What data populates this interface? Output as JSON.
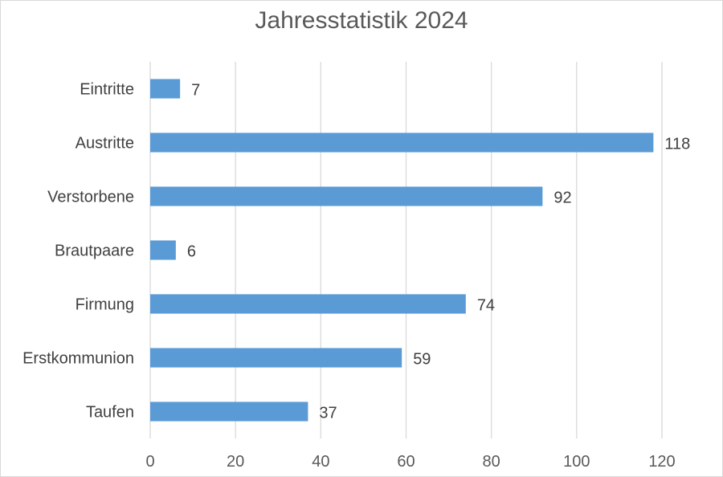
{
  "chart_data": {
    "type": "bar",
    "orientation": "horizontal",
    "title": "Jahresstatistik 2024",
    "categories": [
      "Eintritte",
      "Austritte",
      "Verstorbene",
      "Brautpaare",
      "Firmung",
      "Erstkommunion",
      "Taufen"
    ],
    "values": [
      7,
      118,
      92,
      6,
      74,
      59,
      37
    ],
    "xlabel": "",
    "ylabel": "",
    "xlim": [
      0,
      120
    ],
    "xticks": [
      0,
      20,
      40,
      60,
      80,
      100,
      120
    ],
    "grid": true,
    "bar_color": "#5b9bd5",
    "grid_color": "#d9d9d9",
    "data_labels": true
  }
}
